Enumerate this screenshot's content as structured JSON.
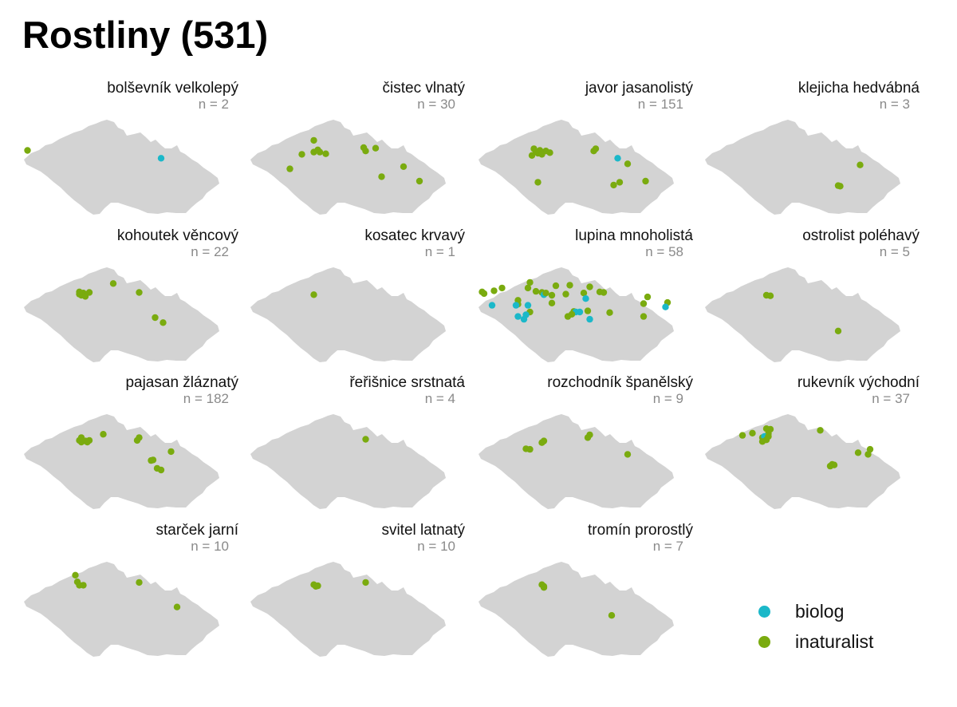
{
  "title": "Rostliny (531)",
  "colors": {
    "biolog": "#1bb8c9",
    "inaturalist": "#7aab0f",
    "land": "#d3d3d3"
  },
  "legend": [
    {
      "key": "biolog",
      "label": "biolog"
    },
    {
      "key": "inaturalist",
      "label": "inaturalist"
    }
  ],
  "panels": [
    {
      "name": "bolševník velkolepý",
      "count": "n = 2",
      "points": [
        [
          0.03,
          0.55,
          "inaturalist"
        ],
        [
          0.7,
          0.69,
          "biolog"
        ]
      ]
    },
    {
      "name": "čistec vlnatý",
      "count": "n = 30",
      "points": [
        [
          0.33,
          0.37,
          "inaturalist"
        ],
        [
          0.33,
          0.58,
          "inaturalist"
        ],
        [
          0.35,
          0.54,
          "inaturalist"
        ],
        [
          0.36,
          0.58,
          "inaturalist"
        ],
        [
          0.39,
          0.61,
          "inaturalist"
        ],
        [
          0.27,
          0.62,
          "inaturalist"
        ],
        [
          0.58,
          0.5,
          "inaturalist"
        ],
        [
          0.59,
          0.56,
          "inaturalist"
        ],
        [
          0.64,
          0.51,
          "inaturalist"
        ],
        [
          0.21,
          0.88,
          "inaturalist"
        ],
        [
          0.78,
          0.84,
          "inaturalist"
        ],
        [
          0.67,
          1.02,
          "inaturalist"
        ],
        [
          0.86,
          1.1,
          "inaturalist"
        ]
      ]
    },
    {
      "name": "javor jasanolistý",
      "count": "n = 151",
      "points": [
        [
          0.29,
          0.52,
          "inaturalist"
        ],
        [
          0.32,
          0.55,
          "inaturalist"
        ],
        [
          0.35,
          0.56,
          "inaturalist"
        ],
        [
          0.31,
          0.6,
          "inaturalist"
        ],
        [
          0.28,
          0.64,
          "inaturalist"
        ],
        [
          0.33,
          0.62,
          "inaturalist"
        ],
        [
          0.37,
          0.59,
          "inaturalist"
        ],
        [
          0.3,
          0.57,
          "inaturalist"
        ],
        [
          0.6,
          0.52,
          "inaturalist"
        ],
        [
          0.59,
          0.56,
          "inaturalist"
        ],
        [
          0.71,
          0.69,
          "biolog"
        ],
        [
          0.76,
          0.79,
          "inaturalist"
        ],
        [
          0.31,
          1.12,
          "inaturalist"
        ],
        [
          0.72,
          1.12,
          "inaturalist"
        ],
        [
          0.69,
          1.17,
          "inaturalist"
        ],
        [
          0.85,
          1.1,
          "inaturalist"
        ]
      ]
    },
    {
      "name": "klejicha hedvábná",
      "count": "n = 3",
      "points": [
        [
          0.79,
          0.81,
          "inaturalist"
        ],
        [
          0.68,
          1.18,
          "inaturalist"
        ],
        [
          0.69,
          1.19,
          "inaturalist"
        ]
      ]
    },
    {
      "name": "kohoutek věncový",
      "count": "n = 22",
      "points": [
        [
          0.46,
          0.29,
          "inaturalist"
        ],
        [
          0.29,
          0.44,
          "inaturalist"
        ],
        [
          0.31,
          0.46,
          "inaturalist"
        ],
        [
          0.34,
          0.45,
          "inaturalist"
        ],
        [
          0.3,
          0.5,
          "inaturalist"
        ],
        [
          0.32,
          0.52,
          "inaturalist"
        ],
        [
          0.29,
          0.48,
          "inaturalist"
        ],
        [
          0.59,
          0.45,
          "inaturalist"
        ],
        [
          0.67,
          0.9,
          "inaturalist"
        ],
        [
          0.71,
          0.99,
          "inaturalist"
        ]
      ]
    },
    {
      "name": "kosatec krvavý",
      "count": "n = 1",
      "points": [
        [
          0.33,
          0.49,
          "inaturalist"
        ]
      ]
    },
    {
      "name": "lupina mnoholistá",
      "count": "n = 58",
      "points": [
        [
          0.27,
          0.27,
          "inaturalist"
        ],
        [
          0.47,
          0.32,
          "inaturalist"
        ],
        [
          0.26,
          0.37,
          "inaturalist"
        ],
        [
          0.4,
          0.33,
          "inaturalist"
        ],
        [
          0.13,
          0.37,
          "inaturalist"
        ],
        [
          0.09,
          0.42,
          "inaturalist"
        ],
        [
          0.03,
          0.44,
          "inaturalist"
        ],
        [
          0.04,
          0.47,
          "inaturalist"
        ],
        [
          0.3,
          0.43,
          "inaturalist"
        ],
        [
          0.33,
          0.45,
          "inaturalist"
        ],
        [
          0.34,
          0.49,
          "biolog"
        ],
        [
          0.35,
          0.46,
          "inaturalist"
        ],
        [
          0.38,
          0.5,
          "inaturalist"
        ],
        [
          0.45,
          0.48,
          "inaturalist"
        ],
        [
          0.54,
          0.46,
          "inaturalist"
        ],
        [
          0.62,
          0.44,
          "inaturalist"
        ],
        [
          0.64,
          0.45,
          "inaturalist"
        ],
        [
          0.57,
          0.35,
          "inaturalist"
        ],
        [
          0.55,
          0.56,
          "biolog"
        ],
        [
          0.38,
          0.64,
          "inaturalist"
        ],
        [
          0.21,
          0.59,
          "inaturalist"
        ],
        [
          0.21,
          0.66,
          "inaturalist"
        ],
        [
          0.08,
          0.68,
          "biolog"
        ],
        [
          0.2,
          0.68,
          "biolog"
        ],
        [
          0.26,
          0.68,
          "biolog"
        ],
        [
          0.27,
          0.8,
          "inaturalist"
        ],
        [
          0.49,
          0.79,
          "inaturalist"
        ],
        [
          0.5,
          0.8,
          "biolog"
        ],
        [
          0.52,
          0.8,
          "biolog"
        ],
        [
          0.48,
          0.84,
          "inaturalist"
        ],
        [
          0.46,
          0.88,
          "inaturalist"
        ],
        [
          0.56,
          0.78,
          "inaturalist"
        ],
        [
          0.21,
          0.88,
          "biolog"
        ],
        [
          0.25,
          0.85,
          "biolog"
        ],
        [
          0.24,
          0.93,
          "biolog"
        ],
        [
          0.57,
          0.93,
          "biolog"
        ],
        [
          0.67,
          0.81,
          "inaturalist"
        ],
        [
          0.86,
          0.53,
          "inaturalist"
        ],
        [
          0.96,
          0.63,
          "inaturalist"
        ],
        [
          0.84,
          0.65,
          "inaturalist"
        ],
        [
          0.95,
          0.71,
          "biolog"
        ],
        [
          0.84,
          0.88,
          "inaturalist"
        ]
      ]
    },
    {
      "name": "ostrolist poléhavý",
      "count": "n = 5",
      "points": [
        [
          0.32,
          0.5,
          "inaturalist"
        ],
        [
          0.34,
          0.51,
          "inaturalist"
        ],
        [
          0.68,
          1.14,
          "inaturalist"
        ]
      ]
    },
    {
      "name": "pajasan žláznatý",
      "count": "n = 182",
      "points": [
        [
          0.41,
          0.36,
          "inaturalist"
        ],
        [
          0.3,
          0.42,
          "inaturalist"
        ],
        [
          0.29,
          0.47,
          "inaturalist"
        ],
        [
          0.32,
          0.48,
          "inaturalist"
        ],
        [
          0.34,
          0.47,
          "inaturalist"
        ],
        [
          0.3,
          0.5,
          "inaturalist"
        ],
        [
          0.33,
          0.5,
          "inaturalist"
        ],
        [
          0.59,
          0.42,
          "inaturalist"
        ],
        [
          0.58,
          0.47,
          "inaturalist"
        ],
        [
          0.75,
          0.67,
          "inaturalist"
        ],
        [
          0.66,
          0.82,
          "inaturalist"
        ],
        [
          0.65,
          0.83,
          "inaturalist"
        ],
        [
          0.68,
          0.97,
          "inaturalist"
        ],
        [
          0.7,
          1.0,
          "inaturalist"
        ]
      ]
    },
    {
      "name": "řeřišnice srstnatá",
      "count": "n = 4",
      "points": [
        [
          0.59,
          0.45,
          "inaturalist"
        ]
      ]
    },
    {
      "name": "rozchodník španělský",
      "count": "n = 9",
      "points": [
        [
          0.57,
          0.37,
          "inaturalist"
        ],
        [
          0.56,
          0.42,
          "inaturalist"
        ],
        [
          0.34,
          0.48,
          "inaturalist"
        ],
        [
          0.33,
          0.51,
          "inaturalist"
        ],
        [
          0.25,
          0.62,
          "inaturalist"
        ],
        [
          0.27,
          0.63,
          "inaturalist"
        ],
        [
          0.76,
          0.72,
          "inaturalist"
        ]
      ]
    },
    {
      "name": "rukevník východní",
      "count": "n = 37",
      "points": [
        [
          0.32,
          0.26,
          "inaturalist"
        ],
        [
          0.34,
          0.27,
          "inaturalist"
        ],
        [
          0.25,
          0.34,
          "inaturalist"
        ],
        [
          0.2,
          0.38,
          "inaturalist"
        ],
        [
          0.33,
          0.35,
          "inaturalist"
        ],
        [
          0.3,
          0.42,
          "inaturalist"
        ],
        [
          0.31,
          0.4,
          "biolog"
        ],
        [
          0.33,
          0.4,
          "inaturalist"
        ],
        [
          0.32,
          0.46,
          "inaturalist"
        ],
        [
          0.3,
          0.49,
          "inaturalist"
        ],
        [
          0.59,
          0.29,
          "inaturalist"
        ],
        [
          0.84,
          0.63,
          "inaturalist"
        ],
        [
          0.78,
          0.69,
          "inaturalist"
        ],
        [
          0.83,
          0.72,
          "inaturalist"
        ],
        [
          0.65,
          0.9,
          "inaturalist"
        ],
        [
          0.66,
          0.91,
          "inaturalist"
        ],
        [
          0.64,
          0.93,
          "inaturalist"
        ]
      ]
    },
    {
      "name": "starček jarní",
      "count": "n = 10",
      "points": [
        [
          0.27,
          0.24,
          "inaturalist"
        ],
        [
          0.28,
          0.36,
          "inaturalist"
        ],
        [
          0.29,
          0.42,
          "inaturalist"
        ],
        [
          0.31,
          0.42,
          "inaturalist"
        ],
        [
          0.59,
          0.37,
          "inaturalist"
        ],
        [
          0.78,
          0.81,
          "inaturalist"
        ]
      ]
    },
    {
      "name": "svitel latnatý",
      "count": "n = 10",
      "points": [
        [
          0.33,
          0.41,
          "inaturalist"
        ],
        [
          0.35,
          0.43,
          "inaturalist"
        ],
        [
          0.34,
          0.44,
          "inaturalist"
        ],
        [
          0.59,
          0.37,
          "inaturalist"
        ]
      ]
    },
    {
      "name": "tromín prorostlý",
      "count": "n = 7",
      "points": [
        [
          0.33,
          0.41,
          "inaturalist"
        ],
        [
          0.34,
          0.44,
          "inaturalist"
        ],
        [
          0.34,
          0.46,
          "inaturalist"
        ],
        [
          0.68,
          0.96,
          "inaturalist"
        ]
      ]
    }
  ]
}
